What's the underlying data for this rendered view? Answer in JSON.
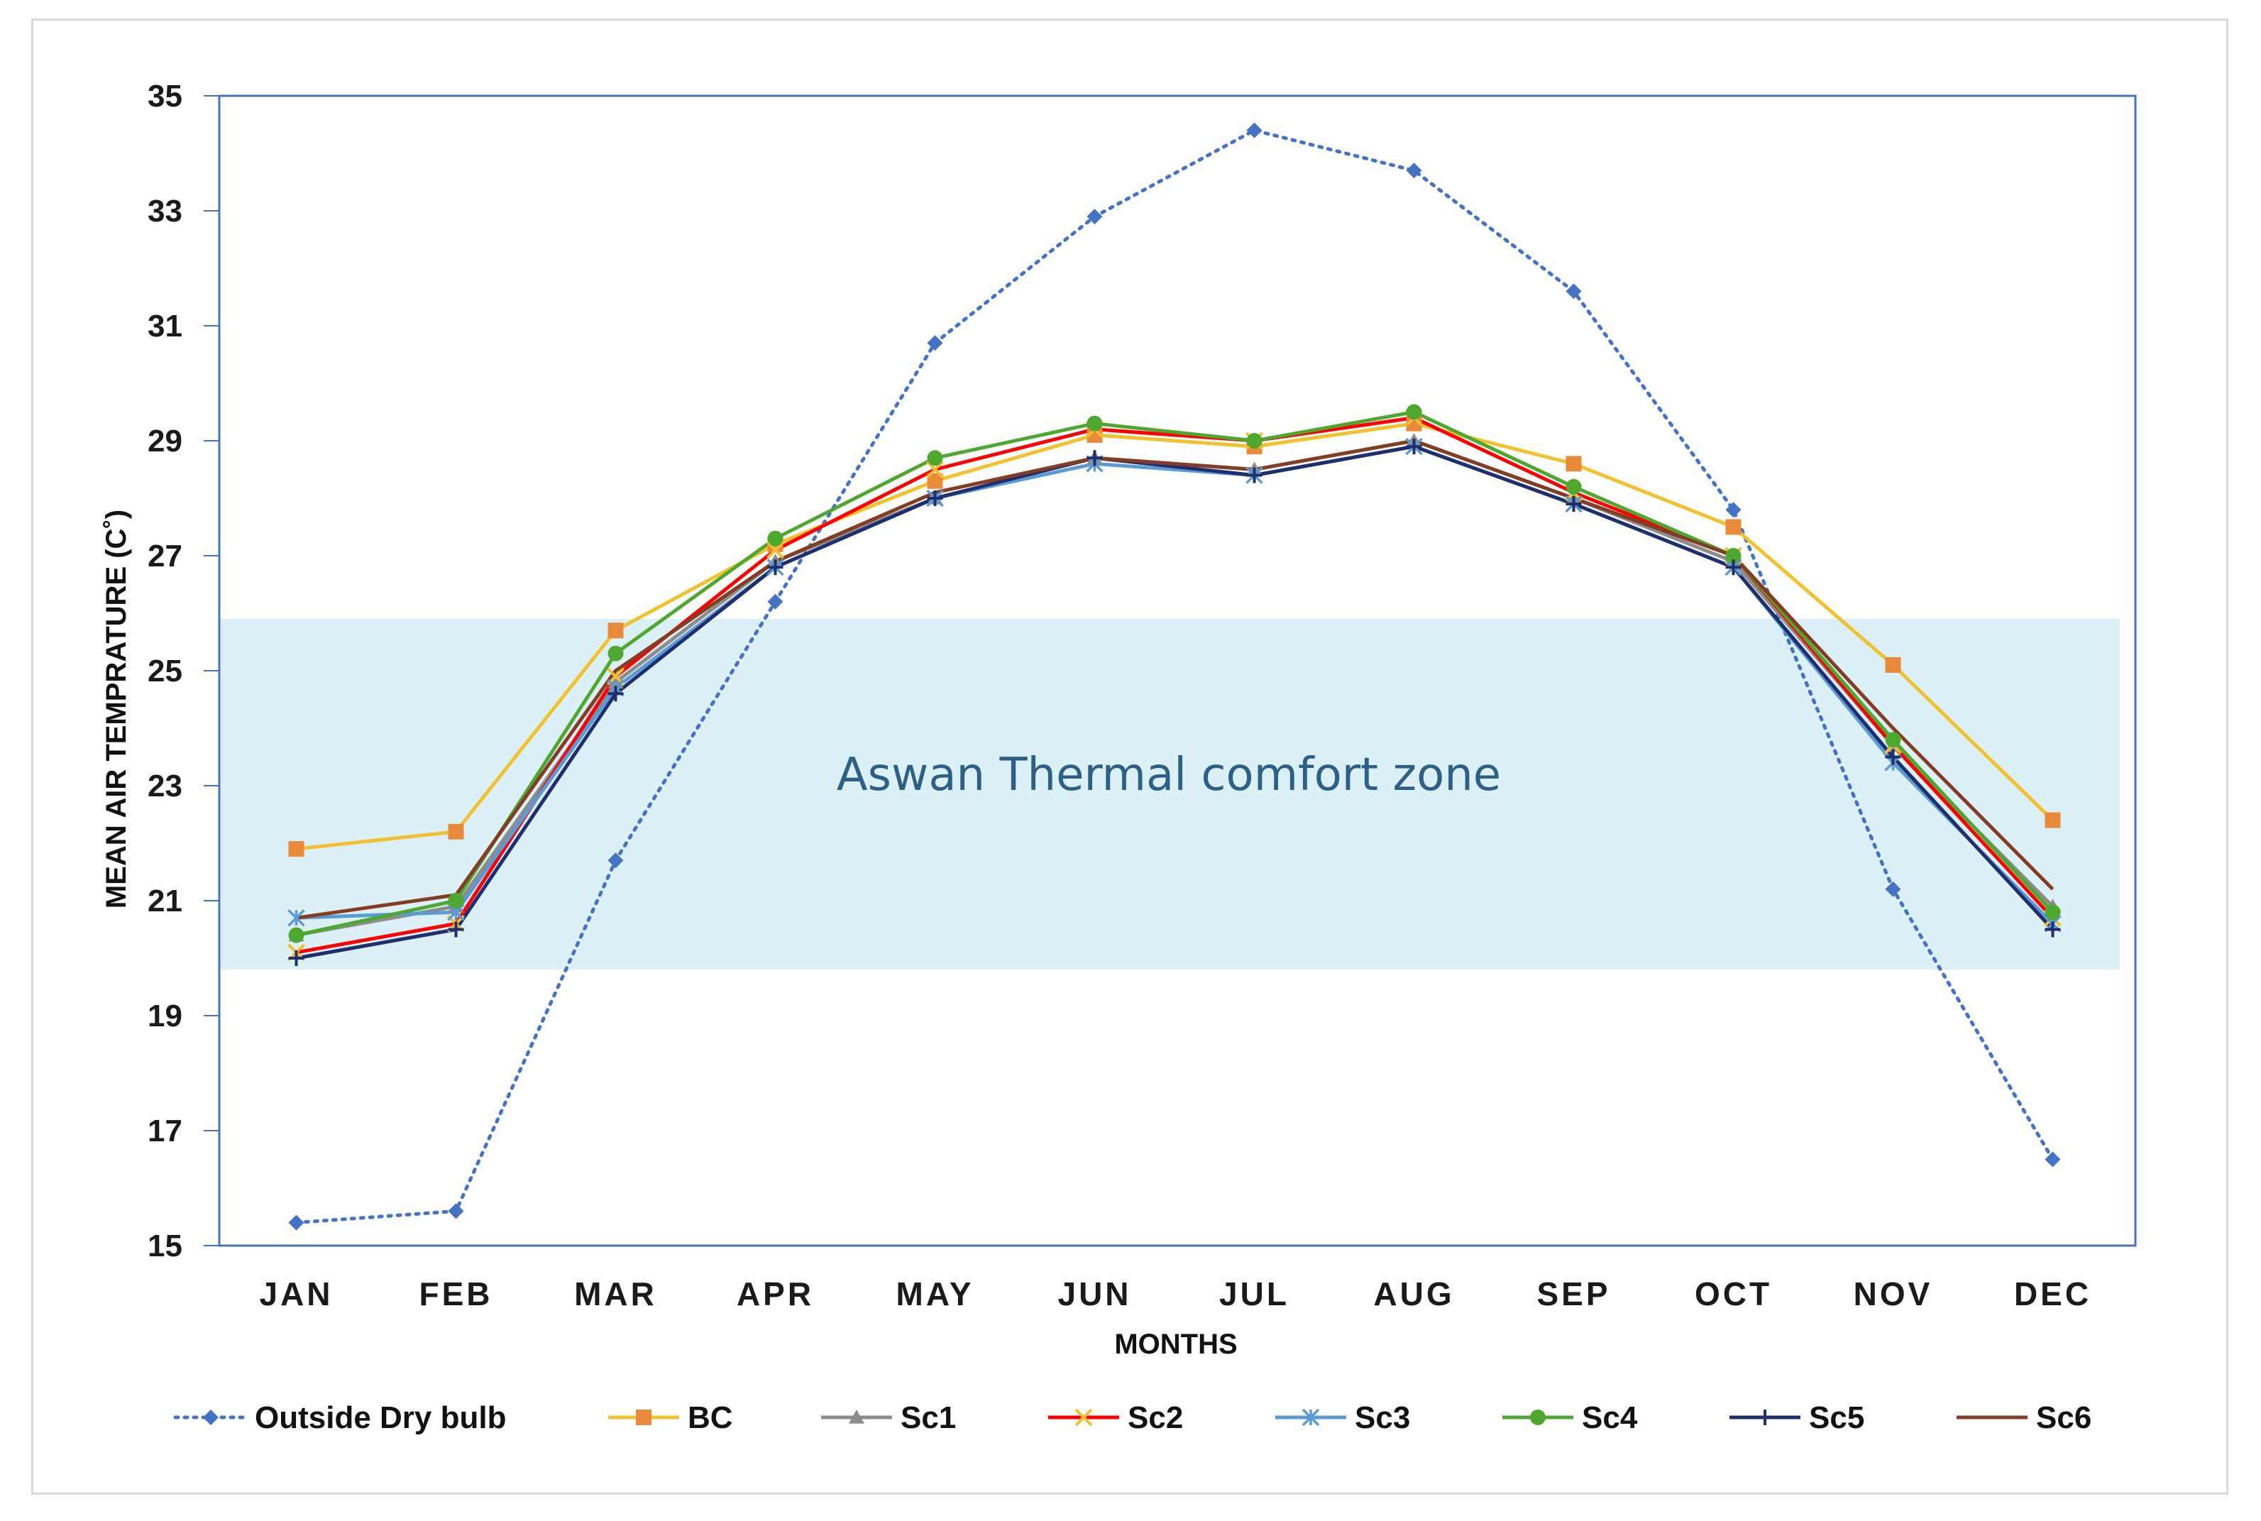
{
  "chart_data": {
    "type": "line",
    "ylabel": "MEAN AIR TEMPRATURE (C˚)",
    "xlabel": "MONTHS",
    "ylim": [
      15,
      35
    ],
    "yticks": [
      15,
      17,
      19,
      21,
      23,
      25,
      27,
      29,
      31,
      33,
      35
    ],
    "categories": [
      "JAN",
      "FEB",
      "MAR",
      "APR",
      "MAY",
      "JUN",
      "JUL",
      "AUG",
      "SEP",
      "OCT",
      "NOV",
      "DEC"
    ],
    "comfort_zone": {
      "label": "Aswan Thermal comfort zone",
      "min": 19.8,
      "max": 25.9,
      "color": "#dbf0f7"
    },
    "series": [
      {
        "name": "Outside Dry bulb",
        "color": "#4472c4",
        "dash": "dotted",
        "marker": "diamond",
        "values": [
          15.4,
          15.6,
          21.7,
          26.2,
          30.7,
          32.9,
          34.4,
          33.7,
          31.6,
          27.8,
          21.2,
          16.5
        ]
      },
      {
        "name": "BC",
        "color": "#f2c12e",
        "markerColor": "#e88a3a",
        "marker": "square",
        "values": [
          21.9,
          22.2,
          25.7,
          27.2,
          28.3,
          29.1,
          28.9,
          29.3,
          28.6,
          27.5,
          25.1,
          22.4
        ]
      },
      {
        "name": "Sc1",
        "color": "#8c8c8c",
        "marker": "triangle",
        "values": [
          20.4,
          20.9,
          24.8,
          26.9,
          28.0,
          28.7,
          28.5,
          29.0,
          28.0,
          26.9,
          23.7,
          20.9
        ]
      },
      {
        "name": "Sc2",
        "color": "#ff0000",
        "markerColor": "#f0c030",
        "marker": "x",
        "values": [
          20.1,
          20.6,
          24.9,
          27.1,
          28.5,
          29.2,
          29.0,
          29.4,
          28.1,
          27.0,
          23.7,
          20.7
        ]
      },
      {
        "name": "Sc3",
        "color": "#5b9bd5",
        "marker": "asterisk",
        "values": [
          20.7,
          20.8,
          24.7,
          26.8,
          28.0,
          28.6,
          28.4,
          28.9,
          27.9,
          26.8,
          23.4,
          20.6
        ]
      },
      {
        "name": "Sc4",
        "color": "#4ea72e",
        "marker": "circle",
        "values": [
          20.4,
          21.0,
          25.3,
          27.3,
          28.7,
          29.3,
          29.0,
          29.5,
          28.2,
          27.0,
          23.8,
          20.8
        ]
      },
      {
        "name": "Sc5",
        "color": "#1f2e6e",
        "marker": "plus",
        "values": [
          20.0,
          20.5,
          24.6,
          26.8,
          28.0,
          28.7,
          28.4,
          28.9,
          27.9,
          26.8,
          23.5,
          20.5
        ]
      },
      {
        "name": "Sc6",
        "color": "#843c22",
        "marker": "none",
        "values": [
          20.7,
          21.1,
          25.0,
          26.9,
          28.1,
          28.7,
          28.5,
          29.0,
          28.0,
          27.0,
          24.0,
          21.2
        ]
      }
    ]
  }
}
